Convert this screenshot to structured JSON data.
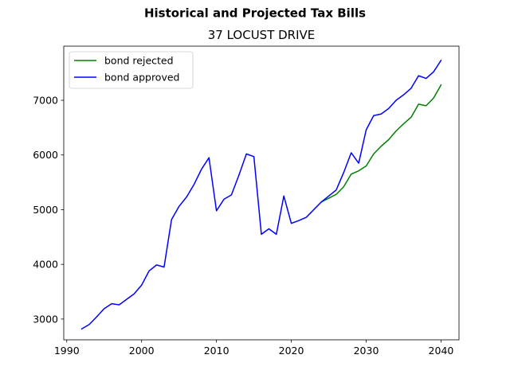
{
  "chart_data": {
    "type": "line",
    "title": "Historical and Projected Tax Bills",
    "subtitle": "37 LOCUST DRIVE",
    "xlabel": "",
    "ylabel": "",
    "xlim": [
      1989.6,
      2042.4
    ],
    "ylim": [
      2620,
      7990
    ],
    "xticks": [
      1990,
      2000,
      2010,
      2020,
      2030,
      2040
    ],
    "yticks": [
      3000,
      4000,
      5000,
      6000,
      7000
    ],
    "grid": false,
    "legend_position": "upper-left",
    "series": [
      {
        "name": "bond rejected",
        "color": "#008000",
        "x": [
          2024,
          2025,
          2026,
          2027,
          2028,
          2029,
          2030,
          2031,
          2032,
          2033,
          2034,
          2035,
          2036,
          2037,
          2038,
          2039,
          2040
        ],
        "values": [
          5140,
          5210,
          5280,
          5420,
          5650,
          5710,
          5800,
          6020,
          6160,
          6280,
          6440,
          6570,
          6690,
          6930,
          6900,
          7040,
          7280
        ]
      },
      {
        "name": "bond approved",
        "color": "#0000ff",
        "x": [
          1992,
          1993,
          1994,
          1995,
          1996,
          1997,
          1998,
          1999,
          2000,
          2001,
          2002,
          2003,
          2004,
          2005,
          2006,
          2007,
          2008,
          2009,
          2010,
          2011,
          2012,
          2013,
          2014,
          2015,
          2016,
          2017,
          2018,
          2019,
          2020,
          2021,
          2022,
          2023,
          2024,
          2025,
          2026,
          2027,
          2028,
          2029,
          2030,
          2031,
          2032,
          2033,
          2034,
          2035,
          2036,
          2037,
          2038,
          2039,
          2040
        ],
        "values": [
          2820,
          2900,
          3040,
          3190,
          3280,
          3260,
          3360,
          3460,
          3620,
          3880,
          3990,
          3950,
          4820,
          5060,
          5230,
          5460,
          5740,
          5950,
          4980,
          5190,
          5270,
          5630,
          6020,
          5970,
          4550,
          4650,
          4550,
          5250,
          4750,
          4800,
          4860,
          5000,
          5140,
          5250,
          5360,
          5680,
          6040,
          5850,
          6460,
          6720,
          6750,
          6850,
          7000,
          7100,
          7220,
          7450,
          7400,
          7520,
          7730
        ]
      }
    ]
  }
}
